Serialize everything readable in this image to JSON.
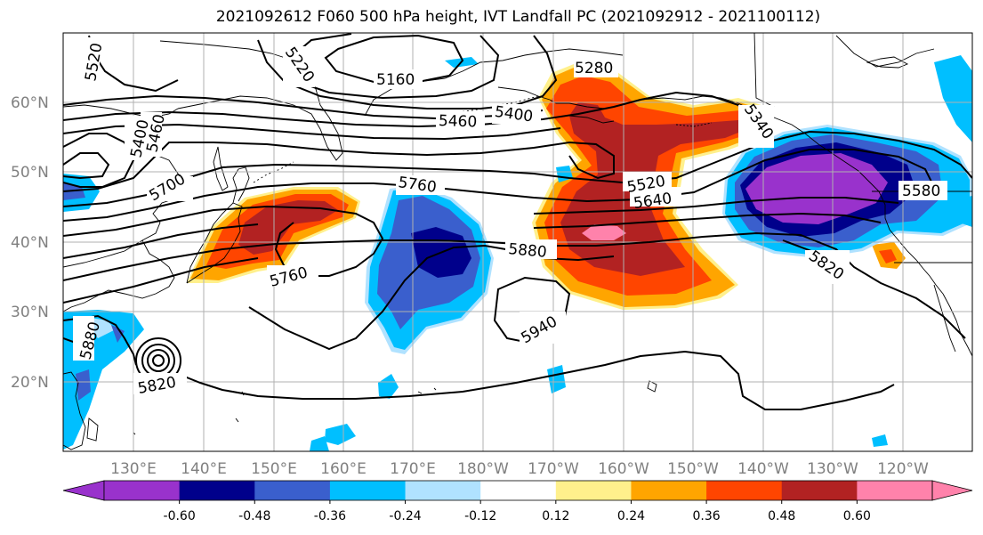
{
  "title": "2021092612 F060 500 hPa height, IVT Landfall PC (2021092912 - 2021100112)",
  "map": {
    "lat_labels": [
      "60°N",
      "50°N",
      "40°N",
      "30°N",
      "20°N"
    ],
    "lon_labels": [
      "130°E",
      "140°E",
      "150°E",
      "160°E",
      "170°E",
      "180°W",
      "170°W",
      "160°W",
      "150°W",
      "140°W",
      "130°W",
      "120°W"
    ],
    "contour_labels": [
      "5520",
      "5220",
      "5160",
      "5280",
      "5460",
      "5400",
      "5340",
      "5400",
      "5460",
      "5700",
      "5760",
      "5520",
      "5640",
      "5580",
      "5880",
      "5760",
      "5820",
      "5940",
      "5880",
      "5820"
    ]
  },
  "colorbar": {
    "colors": [
      "#9932cc",
      "#00008b",
      "#3a5fcd",
      "#00bfff",
      "#b0e2ff",
      "#ffffff",
      "#fff08c",
      "#ffa500",
      "#ff4500",
      "#b22222",
      "#ff82ab"
    ],
    "tick_labels": [
      "-0.60",
      "-0.48",
      "-0.36",
      "-0.24",
      "-0.12",
      "0.12",
      "0.24",
      "0.36",
      "0.48",
      "0.60"
    ]
  }
}
